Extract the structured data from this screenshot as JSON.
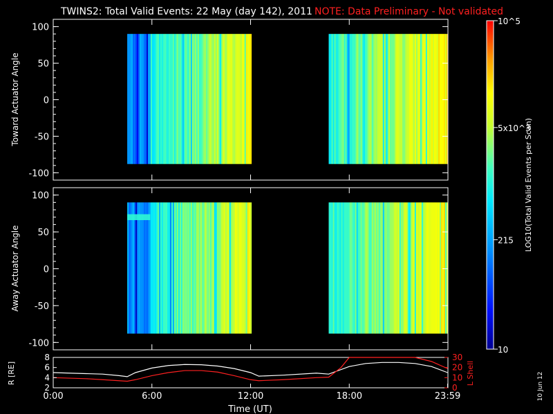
{
  "header": {
    "title": "TWINS2: Total Valid Events: 22 May (day 142), 2011",
    "note": "NOTE: Data Preliminary - Not validated",
    "note_color": "#ff2020"
  },
  "stamp": "10 Jun 12",
  "colorbar": {
    "label": "LOG10(Total Valid Events per Scan)",
    "ticks": [
      {
        "label": "10^5",
        "value": 100000
      },
      {
        "label": "5x10^3",
        "value": 5000
      },
      {
        "label": "215",
        "value": 215
      },
      {
        "label": "10",
        "value": 10
      }
    ],
    "range": [
      10,
      100000
    ],
    "scale": "log"
  },
  "chart_data": [
    {
      "type": "heatmap",
      "panel": "toward",
      "ylabel": "Toward Actuator Angle",
      "xlabel": "",
      "xlim": [
        0,
        24
      ],
      "ylim": [
        -110,
        110
      ],
      "yticks": [
        100,
        50,
        0,
        -50,
        -100
      ],
      "data_blocks": [
        {
          "t_start": 4.5,
          "t_end": 12.05,
          "angle_range": [
            -88,
            90
          ]
        },
        {
          "t_start": 16.75,
          "t_end": 24.0,
          "angle_range": [
            -88,
            90
          ]
        }
      ],
      "trend": "low (~100-300) after 04:30 rising to ~5x10^3 near 12:00; ~1x10^3 after 16:45 rising to ~5x10^3 by 24:00"
    },
    {
      "type": "heatmap",
      "panel": "away",
      "ylabel": "Away Actuator Angle",
      "xlabel": "",
      "xlim": [
        0,
        24
      ],
      "ylim": [
        -110,
        110
      ],
      "yticks": [
        100,
        50,
        0,
        -50,
        -100
      ],
      "data_blocks": [
        {
          "t_start": 4.5,
          "t_end": 12.05,
          "angle_range": [
            -88,
            90
          ]
        },
        {
          "t_start": 16.75,
          "t_end": 24.0,
          "angle_range": [
            -88,
            90
          ]
        }
      ],
      "trend": "similar to toward panel with brighter band near +70 deg before 06:00"
    },
    {
      "type": "line",
      "panel": "orbit",
      "ylabel": "R [RE]",
      "y2label": "L Shell",
      "xlabel": "Time (UT)",
      "xticks": [
        "0:00",
        "6:00",
        "12:00",
        "18:00",
        "23:59"
      ],
      "xtick_values": [
        0,
        6,
        12,
        18,
        23.98
      ],
      "ylim": [
        2,
        8
      ],
      "y2lim": [
        0,
        30
      ],
      "yticks": [
        8,
        6,
        4,
        2
      ],
      "y2ticks": [
        30,
        20,
        10,
        0
      ],
      "series": [
        {
          "name": "",
          "axis": "left",
          "color": "#ffffff",
          "x": [
            0,
            1,
            2,
            3,
            4,
            4.5,
            5,
            6,
            7,
            8,
            9,
            10,
            11,
            12,
            12.5,
            14,
            16,
            16.75,
            18,
            19,
            20,
            21,
            22,
            23,
            23.98
          ],
          "y": [
            5.0,
            4.9,
            4.8,
            4.7,
            4.4,
            4.2,
            5.0,
            5.9,
            6.4,
            6.6,
            6.55,
            6.3,
            5.8,
            5.0,
            4.3,
            4.5,
            4.9,
            4.7,
            6.2,
            6.8,
            7.0,
            7.0,
            6.8,
            6.2,
            5.0
          ]
        },
        {
          "name": "",
          "axis": "right",
          "color": "#ff2020",
          "x": [
            0,
            1,
            2,
            3,
            4,
            4.5,
            5,
            6,
            7,
            8,
            9,
            10,
            11,
            12,
            12.5,
            14,
            16,
            16.75,
            17.5,
            18,
            22.0,
            23.0,
            23.98
          ],
          "y": [
            10,
            9.5,
            9,
            8,
            7,
            6.5,
            8,
            12,
            15,
            17,
            17,
            15.5,
            12,
            8,
            7,
            8,
            10,
            10.5,
            20,
            31,
            31,
            26,
            19
          ]
        }
      ]
    }
  ]
}
